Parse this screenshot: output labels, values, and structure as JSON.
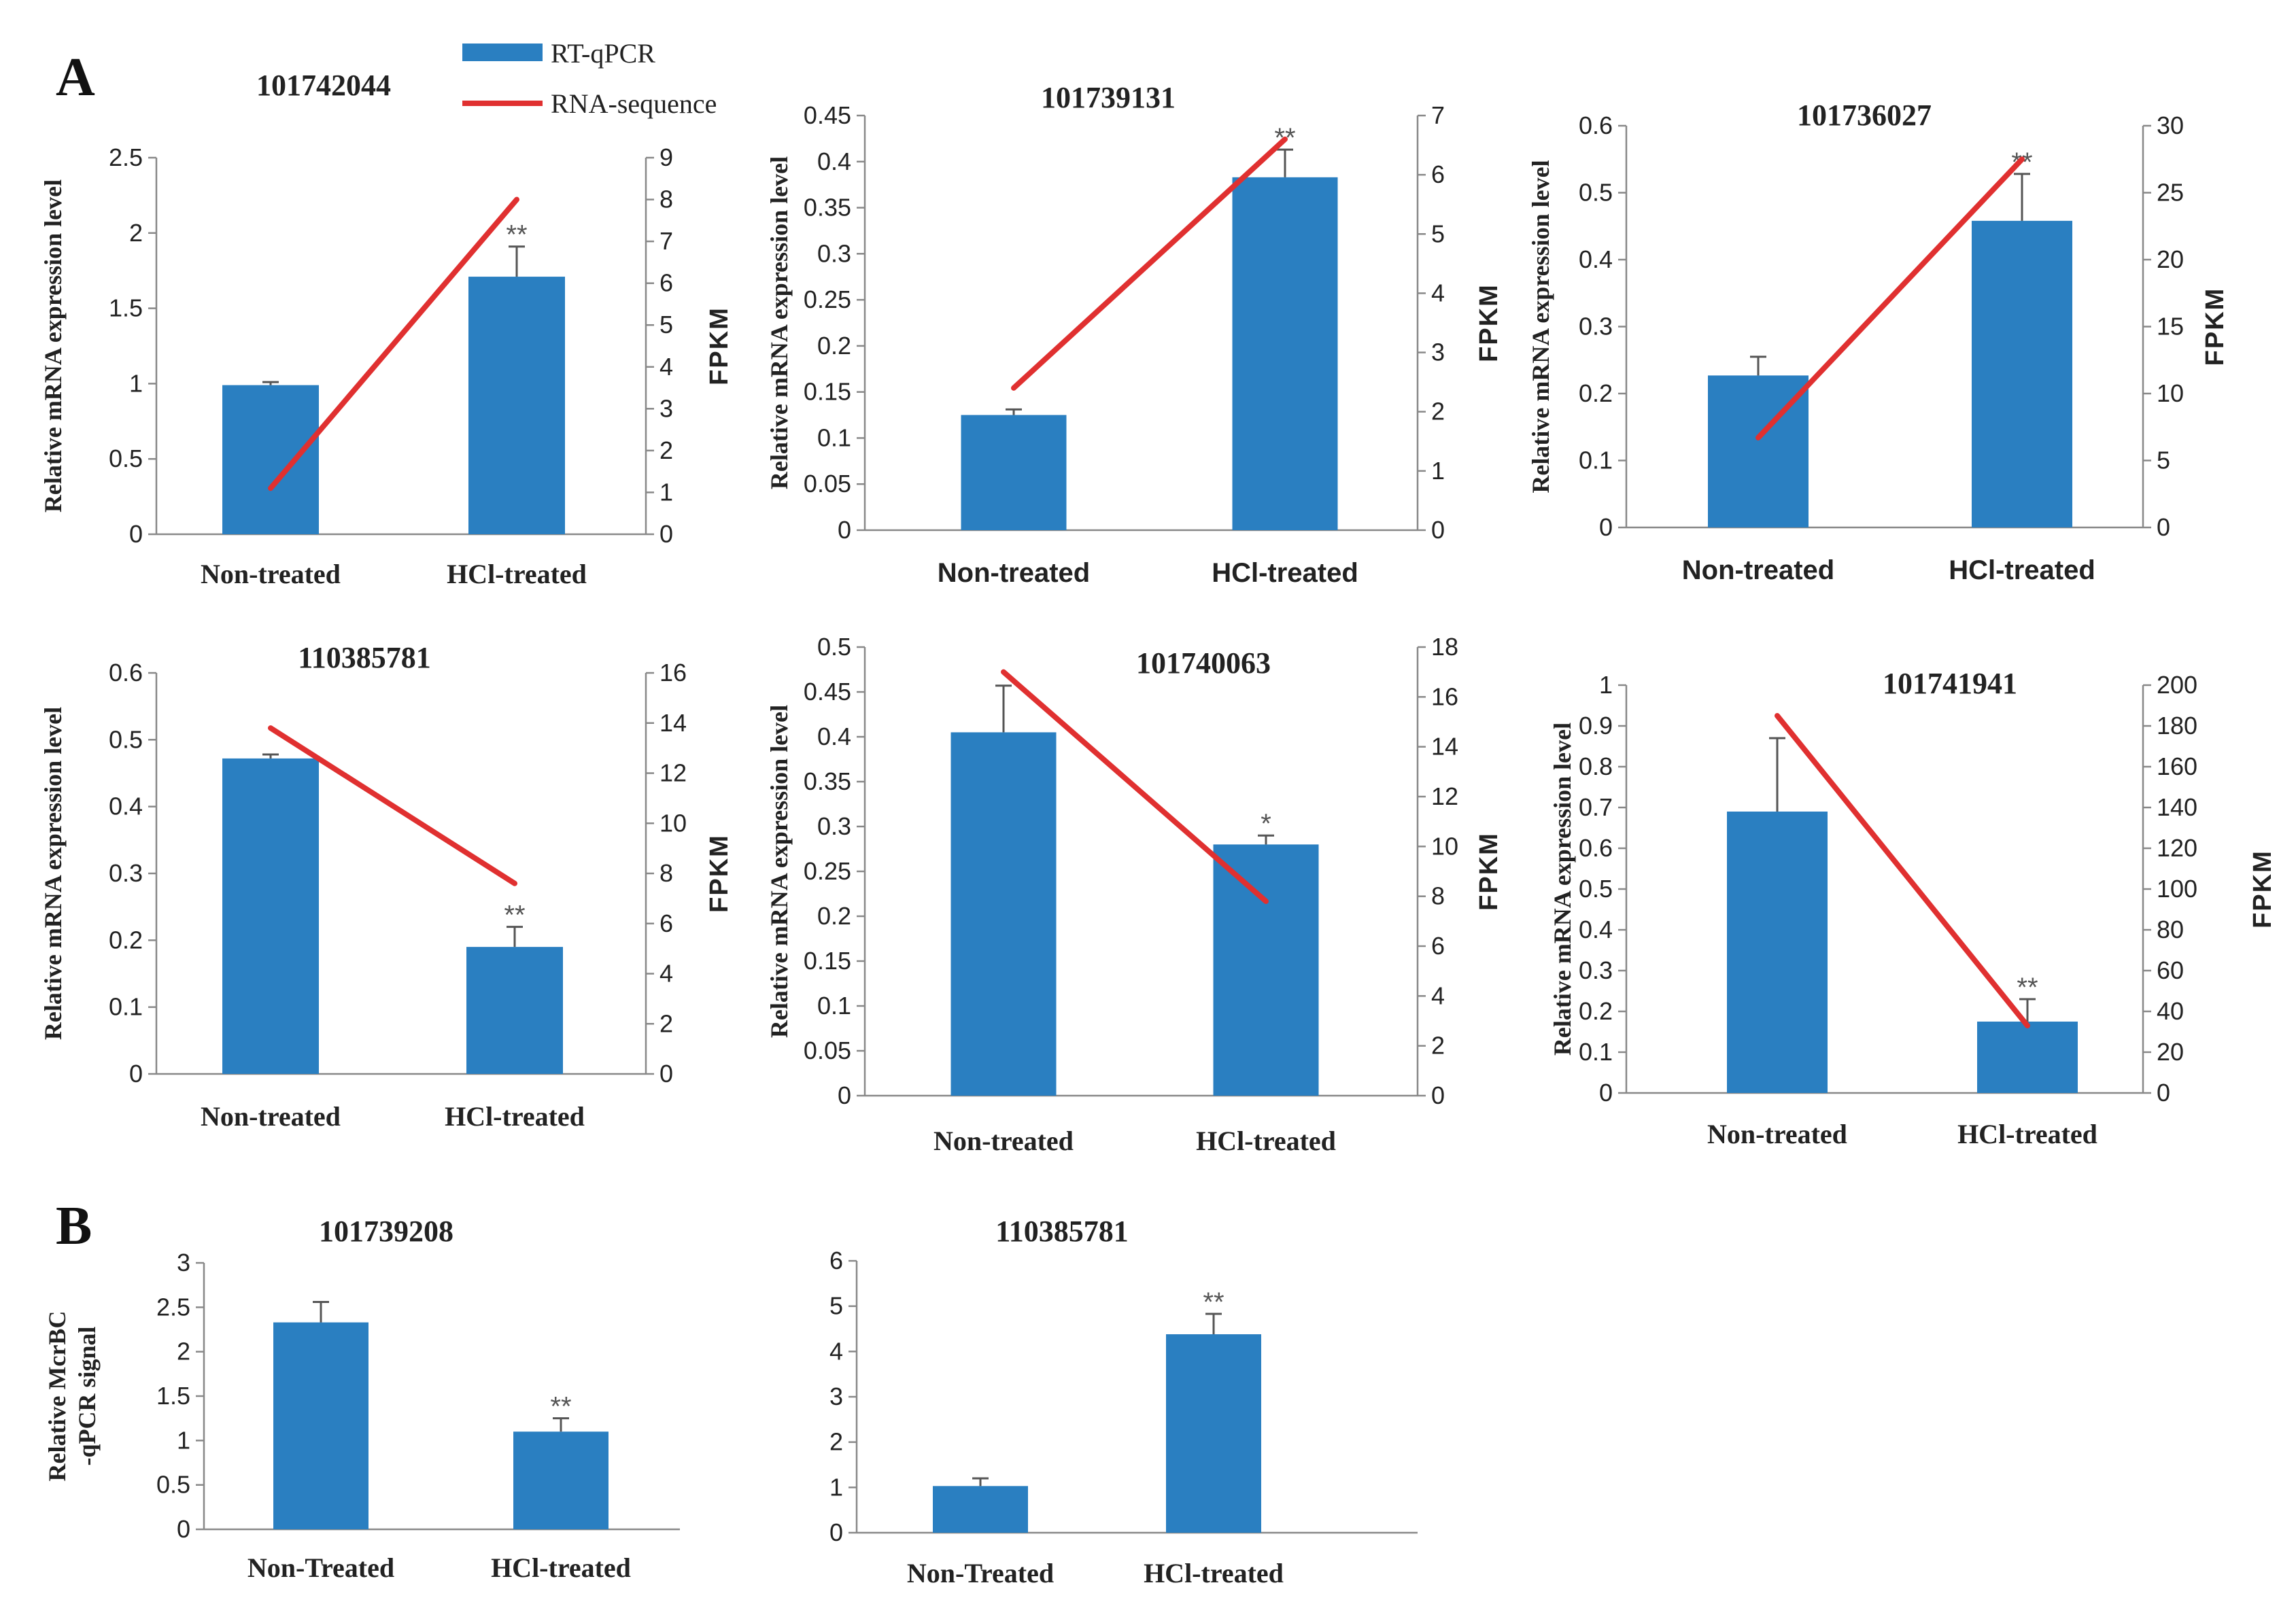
{
  "panel_letters": {
    "a": "A",
    "b": "B"
  },
  "legend": {
    "bar_label": "RT-qPCR",
    "line_label": "RNA-sequence",
    "bar_color": "#2a7fc1",
    "line_color": "#e03030",
    "err_color": "#555555"
  },
  "chart_data": [
    {
      "type": "bar",
      "title": "101742044",
      "categories": [
        "Non-treated",
        "HCl-treated"
      ],
      "values": [
        0.99,
        1.71
      ],
      "errors": [
        0.02,
        0.2
      ],
      "significance": [
        "",
        "**"
      ],
      "ylabel": "Relative mRNA expression level",
      "ylim": [
        0,
        2.5
      ],
      "yticks": [
        "0",
        "0.5",
        "1",
        "1.5",
        "2",
        "2.5"
      ],
      "y2label": "FPKM",
      "y2lim": [
        0,
        9
      ],
      "y2ticks": [
        "0",
        "1",
        "2",
        "3",
        "4",
        "5",
        "6",
        "7",
        "8",
        "9"
      ],
      "line_values": [
        1.1,
        8.0
      ]
    },
    {
      "type": "bar",
      "title": "101739131",
      "categories": [
        "Non-treated",
        "HCl-treated"
      ],
      "values": [
        0.125,
        0.383
      ],
      "errors": [
        0.006,
        0.03
      ],
      "significance": [
        "",
        "**"
      ],
      "ylabel": "Relative mRNA expression level",
      "ylim": [
        0,
        0.45
      ],
      "yticks": [
        "0",
        "0.05",
        "0.1",
        "0.15",
        "0.2",
        "0.25",
        "0.3",
        "0.35",
        "0.4",
        "0.45"
      ],
      "y2label": "FPKM",
      "y2lim": [
        0,
        7
      ],
      "y2ticks": [
        "0",
        "1",
        "2",
        "3",
        "4",
        "5",
        "6",
        "7"
      ],
      "line_values": [
        2.4,
        6.6
      ]
    },
    {
      "type": "bar",
      "title": "101736027",
      "categories": [
        "Non-treated",
        "HCl-treated"
      ],
      "values": [
        0.227,
        0.458
      ],
      "errors": [
        0.028,
        0.07
      ],
      "significance": [
        "",
        "**"
      ],
      "ylabel": "Relative mRNA expression level",
      "ylim": [
        0,
        0.6
      ],
      "yticks": [
        "0",
        "0.1",
        "0.2",
        "0.3",
        "0.4",
        "0.5",
        "0.6"
      ],
      "y2label": "FPKM",
      "y2lim": [
        0,
        30
      ],
      "y2ticks": [
        "0",
        "5",
        "10",
        "15",
        "20",
        "25",
        "30"
      ],
      "line_values": [
        6.7,
        27.5
      ]
    },
    {
      "type": "bar",
      "title": "110385781",
      "categories": [
        "Non-treated",
        "HCl-treated"
      ],
      "values": [
        0.472,
        0.19
      ],
      "errors": [
        0.006,
        0.03
      ],
      "significance": [
        "",
        "**"
      ],
      "ylabel": "Relative mRNA expression level",
      "ylim": [
        0,
        0.6
      ],
      "yticks": [
        "0",
        "0.1",
        "0.2",
        "0.3",
        "0.4",
        "0.5",
        "0.6"
      ],
      "y2label": "FPKM",
      "y2lim": [
        0,
        16
      ],
      "y2ticks": [
        "0",
        "2",
        "4",
        "6",
        "8",
        "10",
        "12",
        "14",
        "16"
      ],
      "line_values": [
        13.8,
        7.6
      ]
    },
    {
      "type": "bar",
      "title": "101740063",
      "categories": [
        "Non-treated",
        "HCl-treated"
      ],
      "values": [
        0.405,
        0.28
      ],
      "errors": [
        0.052,
        0.01
      ],
      "significance": [
        "",
        "*"
      ],
      "ylabel": "Relative mRNA expression level",
      "ylim": [
        0,
        0.5
      ],
      "yticks": [
        "0",
        "0.05",
        "0.1",
        "0.15",
        "0.2",
        "0.25",
        "0.3",
        "0.35",
        "0.4",
        "0.45",
        "0.5"
      ],
      "y2label": "FPKM",
      "y2lim": [
        0,
        18
      ],
      "y2ticks": [
        "0",
        "2",
        "4",
        "6",
        "8",
        "10",
        "12",
        "14",
        "16",
        "18"
      ],
      "line_values": [
        17.0,
        7.8
      ]
    },
    {
      "type": "bar",
      "title": "101741941",
      "categories": [
        "Non-treated",
        "HCl-treated"
      ],
      "values": [
        0.69,
        0.175
      ],
      "errors": [
        0.18,
        0.055
      ],
      "significance": [
        "",
        "**"
      ],
      "ylabel": "Relative mRNA expression level",
      "ylim": [
        0,
        1
      ],
      "yticks": [
        "0",
        "0.1",
        "0.2",
        "0.3",
        "0.4",
        "0.5",
        "0.6",
        "0.7",
        "0.8",
        "0.9",
        "1"
      ],
      "y2label": "FPKM",
      "y2lim": [
        0,
        200
      ],
      "y2ticks": [
        "0",
        "20",
        "40",
        "60",
        "80",
        "100",
        "120",
        "140",
        "160",
        "180",
        "200"
      ],
      "line_values": [
        185,
        33
      ]
    },
    {
      "type": "bar",
      "title": "101739208",
      "categories": [
        "Non-Treated",
        "HCl-treated"
      ],
      "values": [
        2.33,
        1.1
      ],
      "errors": [
        0.23,
        0.15
      ],
      "significance": [
        "",
        "**"
      ],
      "ylabel_lines": [
        "Relative McrBC",
        "-qPCR signal"
      ],
      "ylim": [
        0,
        3
      ],
      "yticks": [
        "0",
        "0.5",
        "1",
        "1.5",
        "2",
        "2.5",
        "3"
      ]
    },
    {
      "type": "bar",
      "title": "110385781",
      "categories": [
        "Non-Treated",
        "HCl-treated"
      ],
      "values": [
        1.03,
        4.38
      ],
      "errors": [
        0.17,
        0.45
      ],
      "significance": [
        "",
        "**"
      ],
      "ylim": [
        0,
        6
      ],
      "yticks": [
        "0",
        "1",
        "2",
        "3",
        "4",
        "5",
        "6"
      ]
    }
  ]
}
